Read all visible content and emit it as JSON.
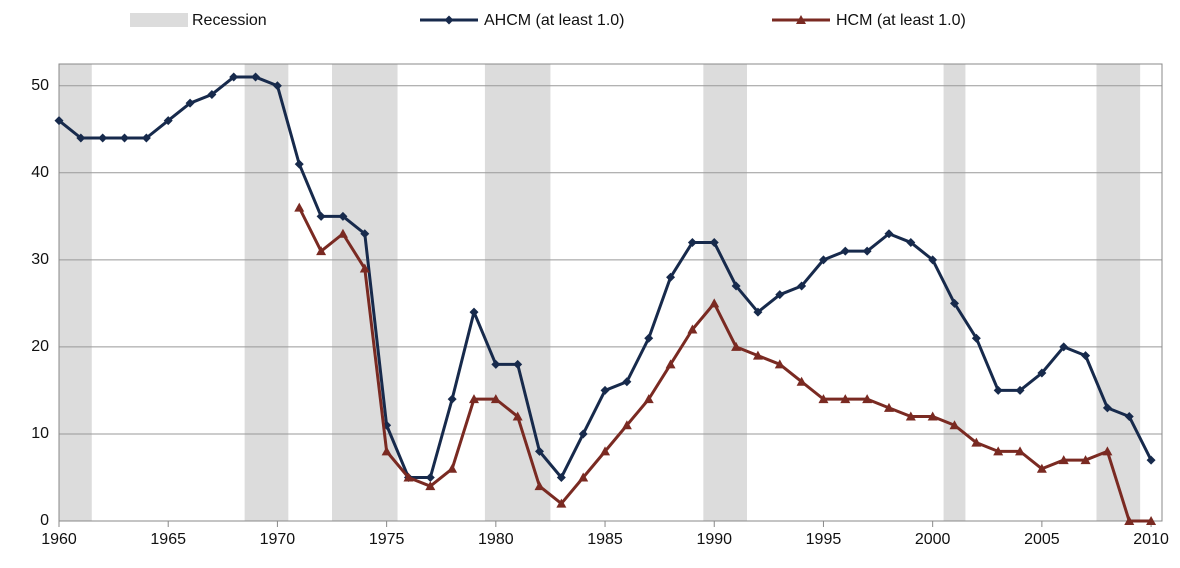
{
  "chart_data": {
    "type": "line",
    "x": [
      1960,
      1961,
      1962,
      1963,
      1964,
      1965,
      1966,
      1967,
      1968,
      1969,
      1970,
      1971,
      1972,
      1973,
      1974,
      1975,
      1976,
      1977,
      1978,
      1979,
      1980,
      1981,
      1982,
      1983,
      1984,
      1985,
      1986,
      1987,
      1988,
      1989,
      1990,
      1991,
      1992,
      1993,
      1994,
      1995,
      1996,
      1997,
      1998,
      1999,
      2000,
      2001,
      2002,
      2003,
      2004,
      2005,
      2006,
      2007,
      2008,
      2009,
      2010
    ],
    "recession": {
      "name": "Recession",
      "color": "#dcdcdc",
      "periods": [
        [
          1960,
          1961.5
        ],
        [
          1968.5,
          1970.5
        ],
        [
          1972.5,
          1975.5
        ],
        [
          1979.5,
          1982.5
        ],
        [
          1989.5,
          1991.5
        ],
        [
          2000.5,
          2001.5
        ],
        [
          2007.5,
          2009.5
        ]
      ]
    },
    "series": [
      {
        "name": "AHCM (at least 1.0)",
        "color": "#172a4c",
        "marker": "diamond",
        "values": [
          46,
          44,
          44,
          44,
          44,
          46,
          48,
          49,
          51,
          51,
          50,
          41,
          35,
          35,
          33,
          11,
          5,
          5,
          14,
          24,
          18,
          18,
          8,
          5,
          10,
          15,
          16,
          21,
          28,
          32,
          32,
          27,
          24,
          26,
          27,
          30,
          31,
          31,
          33,
          32,
          30,
          25,
          21,
          15,
          15,
          17,
          20,
          19,
          13,
          12,
          7
        ]
      },
      {
        "name": "HCM (at least 1.0)",
        "color": "#7a2a22",
        "marker": "triangle",
        "values": [
          null,
          null,
          null,
          null,
          null,
          null,
          null,
          null,
          null,
          null,
          null,
          36,
          31,
          33,
          29,
          8,
          5,
          4,
          6,
          14,
          14,
          12,
          4,
          2,
          5,
          8,
          11,
          14,
          18,
          22,
          25,
          20,
          19,
          18,
          16,
          14,
          14,
          14,
          13,
          12,
          12,
          11,
          9,
          8,
          8,
          6,
          7,
          7,
          8,
          0,
          0
        ]
      }
    ],
    "xlim": [
      1960,
      2010.5
    ],
    "xticks": [
      1960,
      1965,
      1970,
      1975,
      1980,
      1985,
      1990,
      1995,
      2000,
      2005,
      2010
    ],
    "ylim": [
      0,
      52.5
    ],
    "yticks": [
      0,
      10,
      20,
      30,
      40,
      50
    ],
    "grid": true
  }
}
